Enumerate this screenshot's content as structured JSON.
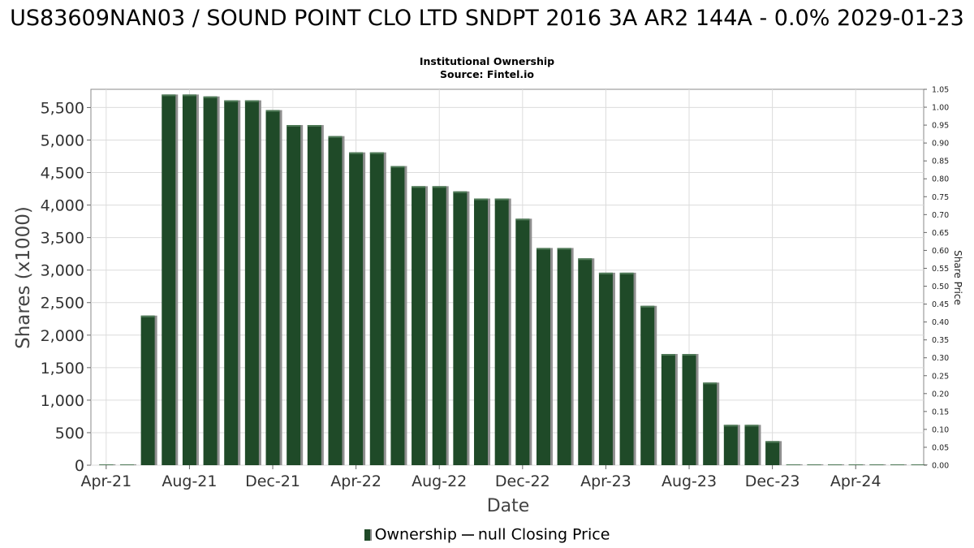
{
  "chart_data": {
    "type": "bar",
    "title": "US83609NAN03 / SOUND POINT CLO LTD SNDPT 2016 3A AR2 144A - 0.0% 2029-01-23",
    "subtitle_lines": [
      "Institutional Ownership",
      "Source: Fintel.io"
    ],
    "xlabel": "Date",
    "ylabel": "Shares (x1000)",
    "y2label": "Share Price",
    "ylim": [
      0,
      5780
    ],
    "y2lim": [
      0,
      1.05
    ],
    "yticks": [
      0,
      500,
      1000,
      1500,
      2000,
      2500,
      3000,
      3500,
      4000,
      4500,
      5000,
      5500
    ],
    "ytick_labels": [
      "0",
      "500",
      "1,000",
      "1,500",
      "2,000",
      "2,500",
      "3,000",
      "3,500",
      "4,000",
      "4,500",
      "5,000",
      "5,500"
    ],
    "y2ticks": [
      "0.00",
      "0.05",
      "0.10",
      "0.15",
      "0.20",
      "0.25",
      "0.30",
      "0.35",
      "0.40",
      "0.45",
      "0.50",
      "0.55",
      "0.60",
      "0.65",
      "0.70",
      "0.75",
      "0.80",
      "0.85",
      "0.90",
      "0.95",
      "1.00",
      "1.05"
    ],
    "xtick_labels": [
      "Apr-21",
      "Aug-21",
      "Dec-21",
      "Apr-22",
      "Aug-22",
      "Dec-22",
      "Apr-23",
      "Aug-23",
      "Dec-23",
      "Apr-24"
    ],
    "x_start": "2021-04",
    "x_end": "2024-07",
    "grid": true,
    "legend_position": "bottom",
    "series": [
      {
        "name": "Ownership",
        "color": "#1f4a28",
        "values": [
          0,
          0,
          2300,
          5700,
          5700,
          5670,
          5610,
          5610,
          5460,
          5230,
          5230,
          5060,
          4810,
          4810,
          4600,
          4290,
          4290,
          4210,
          4100,
          4100,
          3790,
          3340,
          3340,
          3180,
          2960,
          2960,
          2450,
          1710,
          1710,
          1270,
          620,
          620,
          370,
          8,
          8,
          8,
          8,
          8,
          8,
          8
        ]
      }
    ],
    "legend": [
      {
        "label": "Ownership",
        "marker": "bar"
      },
      {
        "label": "null Closing Price",
        "marker": "line"
      }
    ]
  }
}
